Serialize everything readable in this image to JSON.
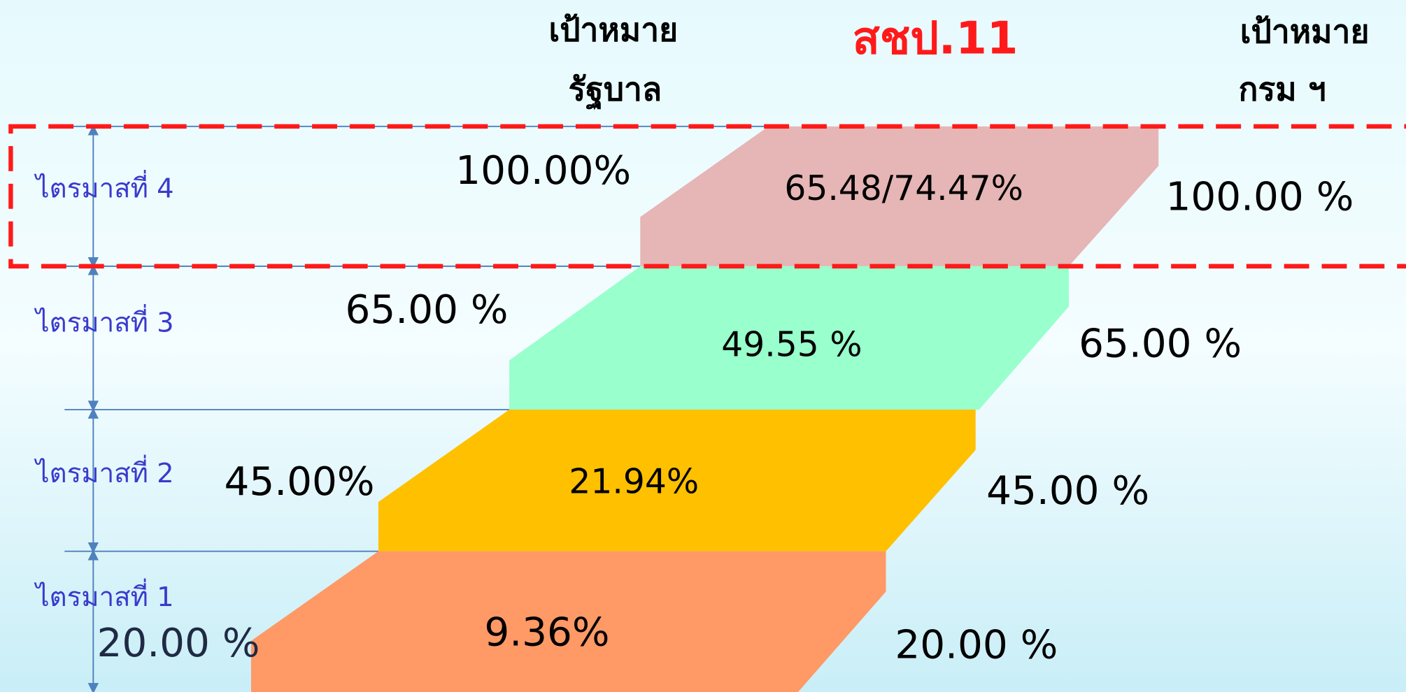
{
  "header": {
    "gov_target": [
      "เป้าหมาย",
      "รัฐบาล"
    ],
    "title": "สชป.11",
    "dept_target": [
      "เป้าหมาย",
      "กรม ฯ"
    ]
  },
  "rows": [
    {
      "label": "ไตรมาสที่ 4",
      "gov_target": "100.00%",
      "result": "65.48/74.47%",
      "dept_target": "100.00 %"
    },
    {
      "label": "ไตรมาสที่ 3",
      "gov_target": "65.00 %",
      "result": "49.55 %",
      "dept_target": "65.00 %"
    },
    {
      "label": "ไตรมาสที่ 2",
      "gov_target": "45.00%",
      "result": "21.94%",
      "dept_target": "45.00 %"
    },
    {
      "label": "ไตรมาสที่ 1",
      "gov_target": "20.00 %",
      "result": "9.36%",
      "dept_target": "20.00 %"
    }
  ]
}
